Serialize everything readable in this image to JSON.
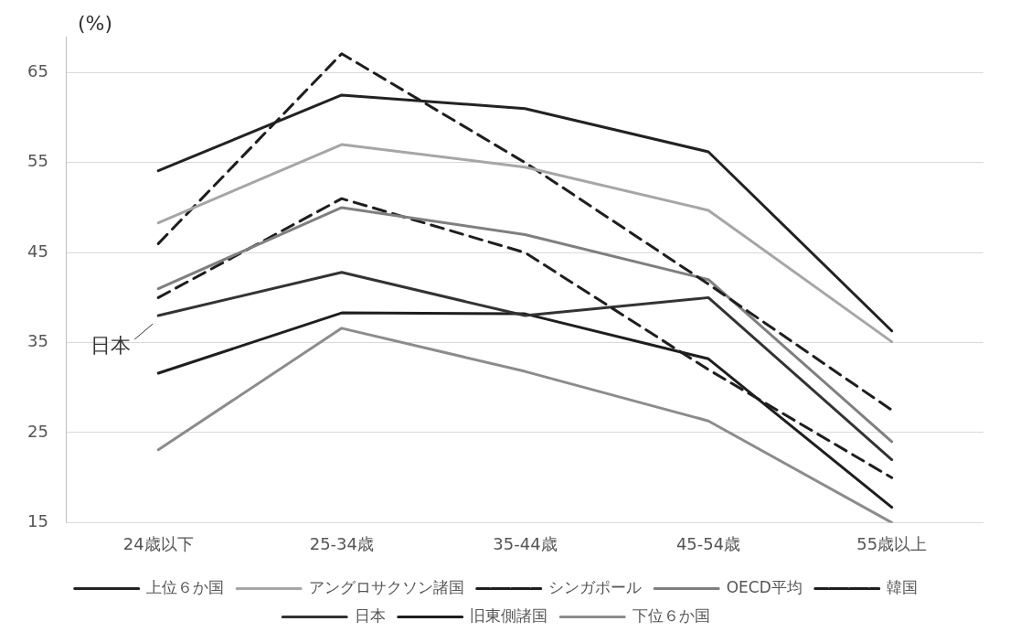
{
  "chart_data": {
    "type": "line",
    "ylabel": "(%)",
    "categories": [
      "24歳以下",
      "25-34歳",
      "35-44歳",
      "45-54歳",
      "55歳以上"
    ],
    "ylim": [
      15,
      69
    ],
    "yticks": [
      15,
      25,
      35,
      45,
      55,
      65
    ],
    "grid": "y",
    "legend": "bottom",
    "marker": "none",
    "annotations": [
      {
        "text": "日本",
        "x": "24歳以下",
        "y": 38
      }
    ],
    "series": [
      {
        "name": "上位６か国",
        "color": "#222222",
        "values": [
          54.1,
          62.5,
          61,
          56.2,
          36.3
        ]
      },
      {
        "name": "アングロサクソン諸国",
        "color": "#a6a6a6",
        "values": [
          48.3,
          57,
          54.5,
          49.7,
          35.1
        ]
      },
      {
        "name": "シンガポール",
        "color": "#1e1e1e",
        "line_style": "dashed",
        "values": [
          46,
          67.1,
          55,
          41.5,
          27.5
        ]
      },
      {
        "name": "OECD平均",
        "color": "#7f7f7f",
        "values": [
          41,
          50,
          47,
          42,
          24
        ]
      },
      {
        "name": "韓国",
        "color": "#1e1e1e",
        "line_style": "dashed",
        "values": [
          40,
          51,
          45,
          32,
          20
        ]
      },
      {
        "name": "日本",
        "color": "#333333",
        "values": [
          38,
          42.8,
          38,
          40,
          22
        ]
      },
      {
        "name": "旧東側諸国",
        "color": "#1e1e1e",
        "values": [
          31.6,
          38.3,
          38.2,
          33.2,
          16.7
        ]
      },
      {
        "name": "下位６か国",
        "color": "#8c8c8c",
        "values": [
          23.1,
          36.6,
          31.8,
          26.3,
          15
        ]
      }
    ]
  }
}
